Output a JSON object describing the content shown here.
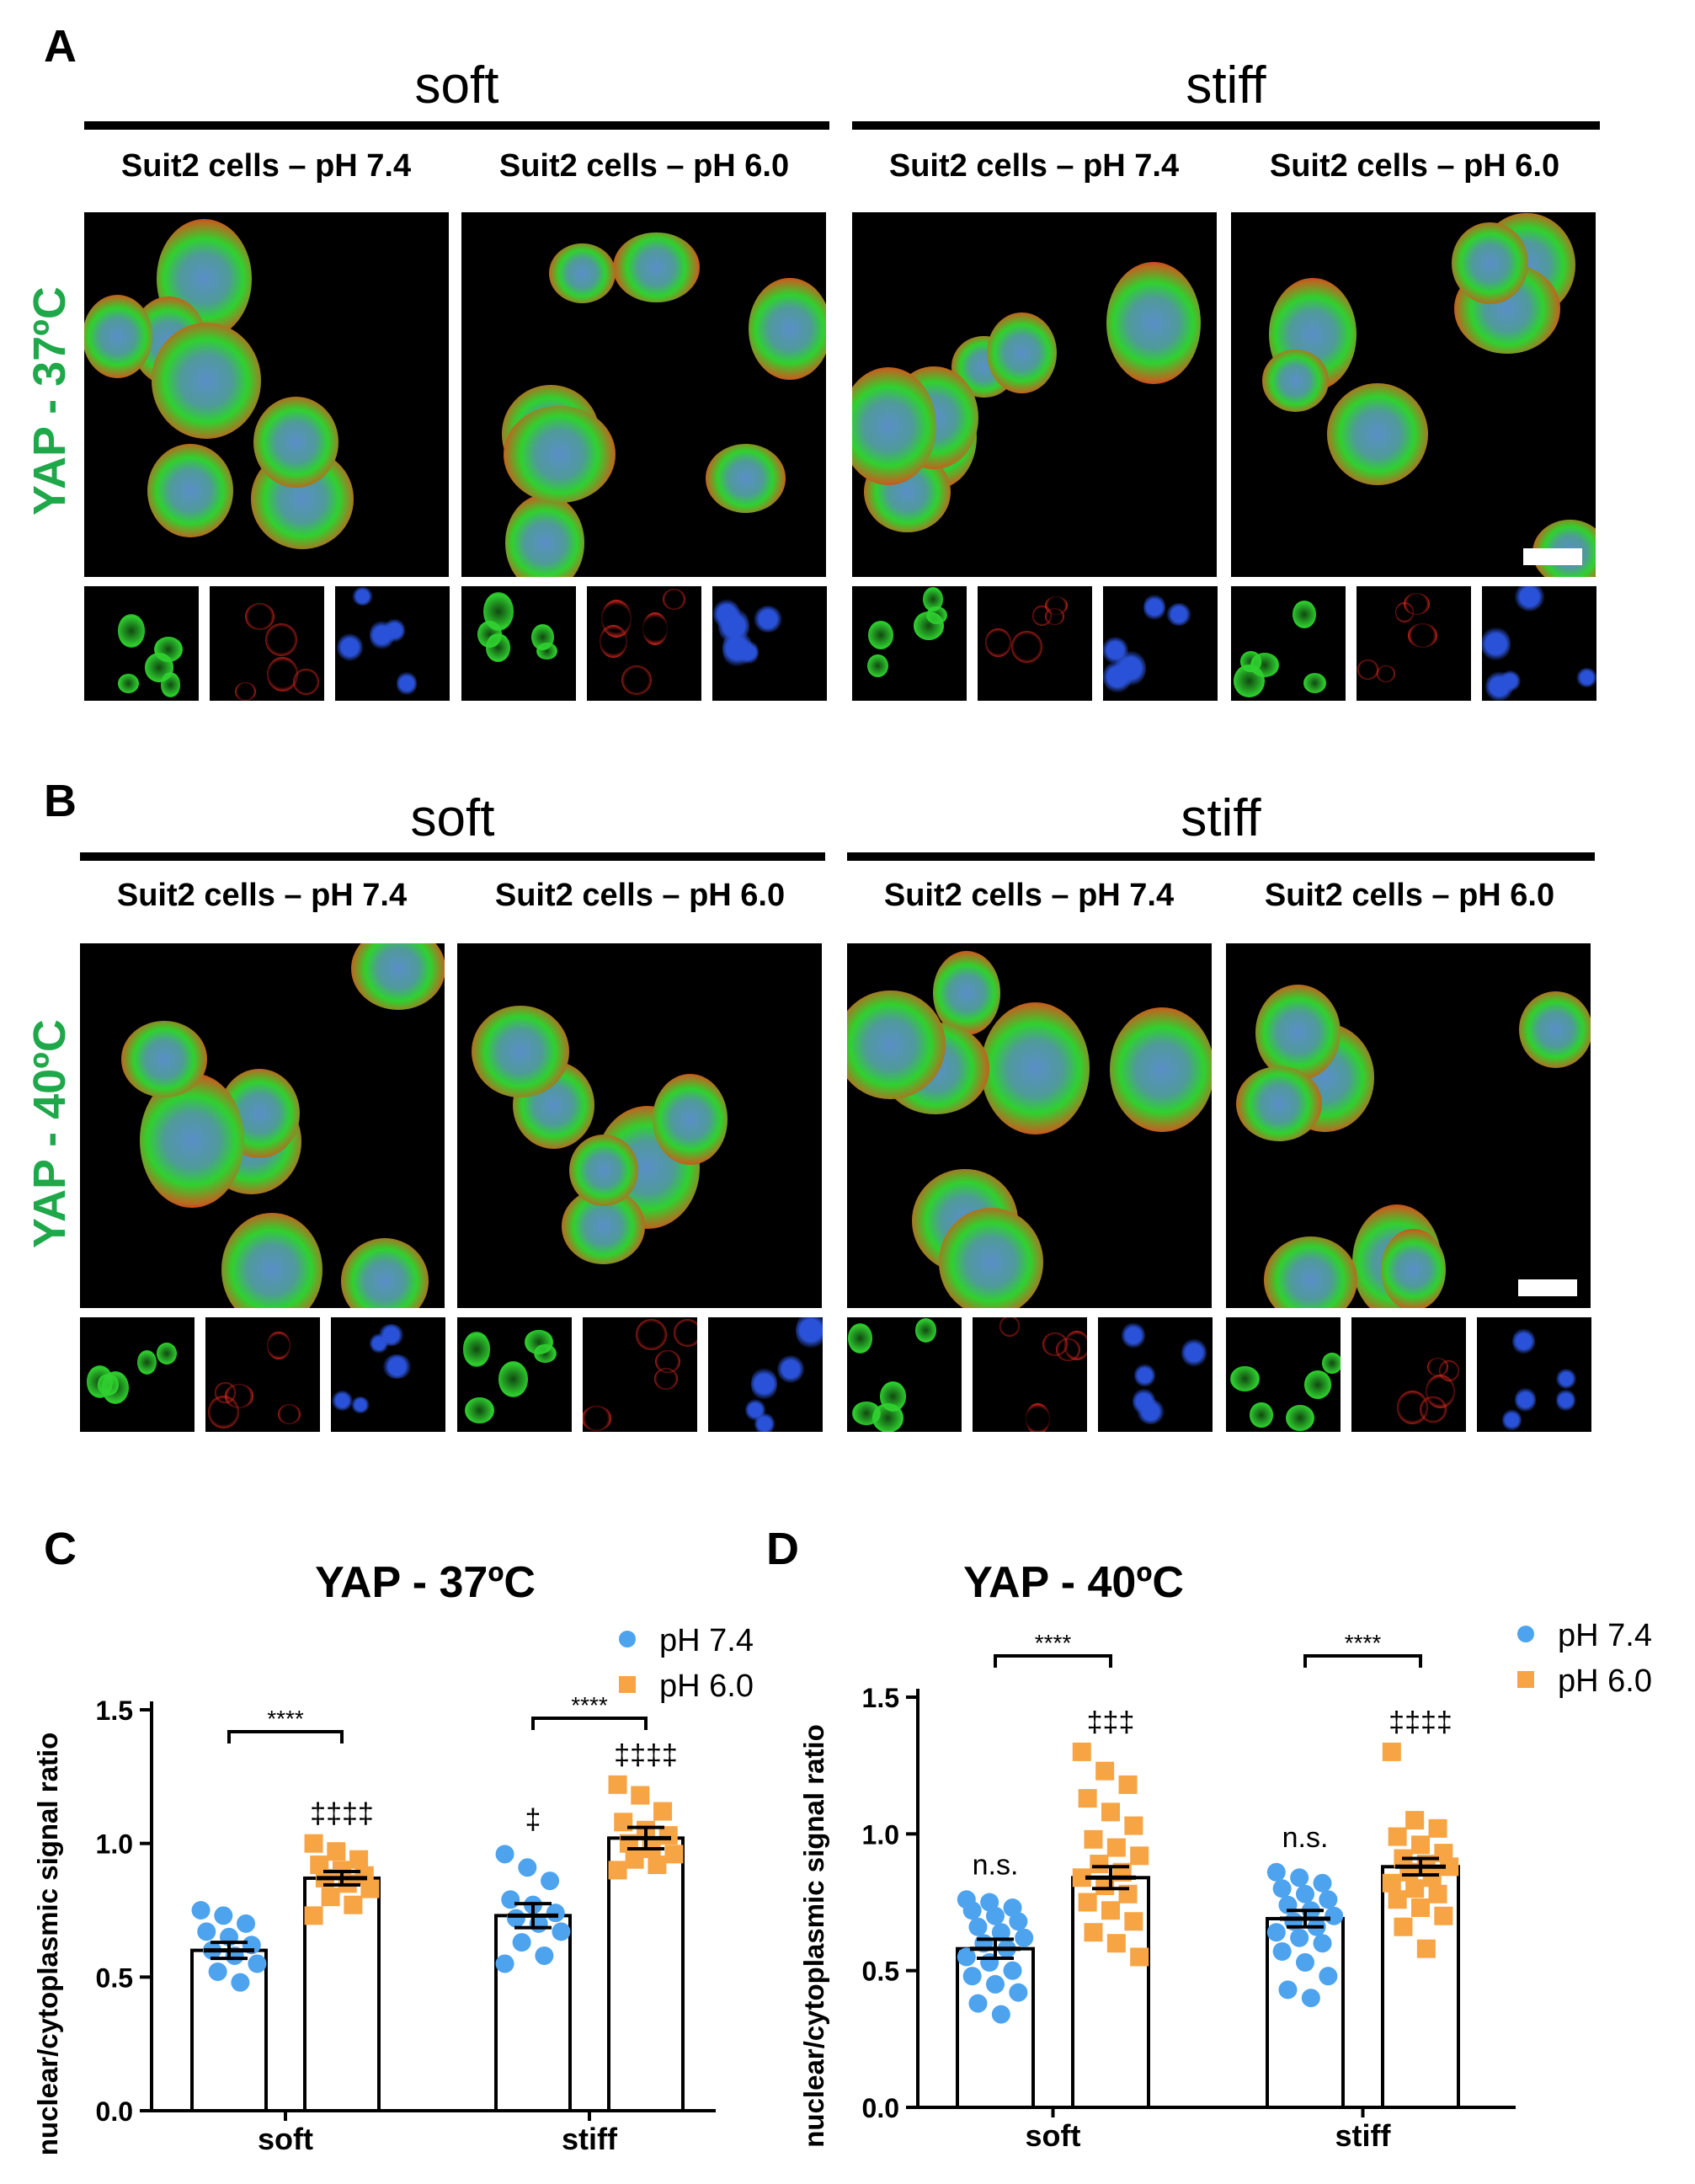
{
  "panels": {
    "A": {
      "letter": "A",
      "row_label": "YAP - 37ºC",
      "groups": [
        {
          "label": "soft",
          "subs": [
            "Suit2 cells – pH 7.4",
            "Suit2 cells – pH 6.0"
          ]
        },
        {
          "label": "stiff",
          "subs": [
            "Suit2 cells – pH 7.4",
            "Suit2 cells – pH 6.0"
          ]
        }
      ]
    },
    "B": {
      "letter": "B",
      "row_label": "YAP - 40ºC",
      "groups": [
        {
          "label": "soft",
          "subs": [
            "Suit2 cells – pH 7.4",
            "Suit2 cells – pH 6.0"
          ]
        },
        {
          "label": "stiff",
          "subs": [
            "Suit2 cells – pH 7.4",
            "Suit2 cells – pH 6.0"
          ]
        }
      ]
    },
    "C": {
      "letter": "C"
    },
    "D": {
      "letter": "D"
    }
  },
  "colors": {
    "ph74": "#4da3ee",
    "ph60": "#f7a445",
    "yap_label": "#1fa84a",
    "green_channel": "#2fd12f",
    "red_channel": "#d8261f",
    "blue_channel": "#2a52d8"
  },
  "chart_data": [
    {
      "type": "bar",
      "title": "YAP - 37ºC",
      "ylabel": "nuclear/cytoplasmic signal ratio",
      "xlabel": "",
      "categories": [
        "soft",
        "stiff"
      ],
      "ylim": [
        0,
        1.5
      ],
      "yticks": [
        "0.0",
        "0.5",
        "1.0",
        "1.5"
      ],
      "legend": {
        "placement": "top-right",
        "entries": [
          "pH 7.4",
          "pH 6.0"
        ]
      },
      "series": [
        {
          "name": "pH 7.4",
          "marker": "circle",
          "color": "#4da3ee",
          "means": [
            0.6,
            0.73
          ],
          "sem": [
            0.03,
            0.045
          ],
          "points": [
            [
              0.75,
              0.73,
              0.7,
              0.67,
              0.65,
              0.62,
              0.6,
              0.58,
              0.55,
              0.52,
              0.48
            ],
            [
              0.96,
              0.91,
              0.86,
              0.79,
              0.77,
              0.74,
              0.72,
              0.7,
              0.67,
              0.63,
              0.58,
              0.55
            ]
          ]
        },
        {
          "name": "pH 6.0",
          "marker": "square",
          "color": "#f7a445",
          "means": [
            0.87,
            1.02
          ],
          "sem": [
            0.025,
            0.04
          ],
          "points": [
            [
              1.0,
              0.97,
              0.94,
              0.92,
              0.9,
              0.88,
              0.87,
              0.85,
              0.83,
              0.8,
              0.77,
              0.73
            ],
            [
              1.22,
              1.18,
              1.12,
              1.08,
              1.05,
              1.03,
              1.0,
              0.98,
              0.96,
              0.94,
              0.92,
              0.9
            ]
          ]
        }
      ],
      "annotations": {
        "brackets": [
          "****",
          "****"
        ],
        "above_ph60": [
          "‡‡‡‡",
          "‡‡‡‡"
        ],
        "above_ph74": [
          "",
          "‡"
        ]
      }
    },
    {
      "type": "bar",
      "title": "YAP - 40ºC",
      "ylabel": "nuclear/cytoplasmic signal ratio",
      "xlabel": "",
      "categories": [
        "soft",
        "stiff"
      ],
      "ylim": [
        0,
        1.5
      ],
      "yticks": [
        "0.0",
        "0.5",
        "1.0",
        "1.5"
      ],
      "legend": {
        "placement": "top-right",
        "entries": [
          "pH 7.4",
          "pH 6.0"
        ]
      },
      "series": [
        {
          "name": "pH 7.4",
          "marker": "circle",
          "color": "#4da3ee",
          "means": [
            0.58,
            0.69
          ],
          "sem": [
            0.035,
            0.03
          ],
          "points": [
            [
              0.76,
              0.75,
              0.73,
              0.72,
              0.7,
              0.68,
              0.66,
              0.64,
              0.62,
              0.6,
              0.58,
              0.55,
              0.53,
              0.5,
              0.48,
              0.45,
              0.42,
              0.38,
              0.34
            ],
            [
              0.86,
              0.84,
              0.82,
              0.8,
              0.78,
              0.76,
              0.74,
              0.72,
              0.7,
              0.68,
              0.66,
              0.64,
              0.62,
              0.6,
              0.57,
              0.53,
              0.48,
              0.43,
              0.4
            ]
          ]
        },
        {
          "name": "pH 6.0",
          "marker": "square",
          "color": "#f7a445",
          "means": [
            0.84,
            0.88
          ],
          "sem": [
            0.04,
            0.03
          ],
          "points": [
            [
              1.3,
              1.23,
              1.18,
              1.13,
              1.08,
              1.03,
              0.98,
              0.95,
              0.92,
              0.89,
              0.86,
              0.84,
              0.81,
              0.78,
              0.75,
              0.72,
              0.68,
              0.64,
              0.6,
              0.55
            ],
            [
              1.3,
              1.05,
              1.02,
              0.99,
              0.96,
              0.93,
              0.91,
              0.89,
              0.88,
              0.86,
              0.84,
              0.82,
              0.8,
              0.78,
              0.76,
              0.73,
              0.7,
              0.66,
              0.58
            ]
          ]
        }
      ],
      "annotations": {
        "brackets": [
          "****",
          "****"
        ],
        "above_ph60": [
          "‡‡‡",
          "‡‡‡‡"
        ],
        "above_ph74": [
          "n.s.",
          "n.s."
        ]
      }
    }
  ]
}
